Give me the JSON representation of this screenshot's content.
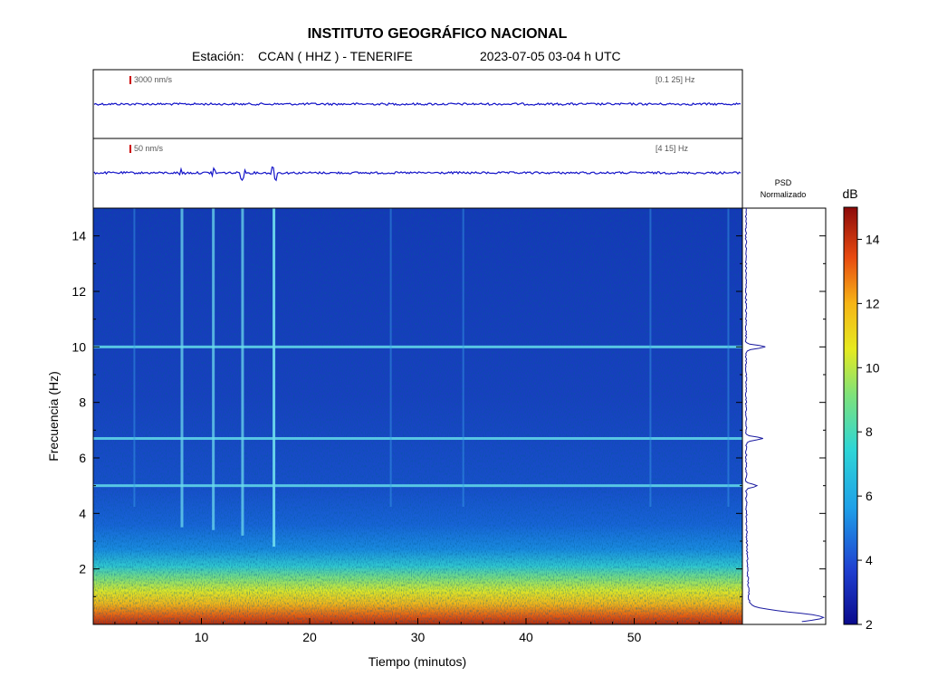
{
  "header": {
    "title": "INSTITUTO GEOGRÁFICO NACIONAL",
    "station_prefix": "Estación:",
    "station": "CCAN ( HHZ ) - TENERIFE",
    "datetime": "2023-07-05  03-04 h UTC"
  },
  "traces": [
    {
      "scale": "3000 nm/s",
      "band": "[0.1 25] Hz"
    },
    {
      "scale": "50 nm/s",
      "band": "[4 15] Hz"
    }
  ],
  "psd": {
    "label_line1": "PSD",
    "label_line2": "Normalizado"
  },
  "colorbar": {
    "unit": "dB",
    "ticks": [
      "2",
      "4",
      "6",
      "8",
      "10",
      "12",
      "14"
    ],
    "min": 2,
    "max": 15
  },
  "colors": {
    "trace": "#1414c8",
    "psd": "#1a1aa0",
    "accent_scale": "#cc0000"
  },
  "chart_data": {
    "type": "heatmap",
    "title": "INSTITUTO GEOGRÁFICO NACIONAL",
    "xlabel": "Tiempo (minutos)",
    "ylabel": "Frecuencia (Hz)",
    "xlim": [
      0,
      60
    ],
    "ylim": [
      0,
      15
    ],
    "xticks": [
      "10",
      "20",
      "30",
      "40",
      "50"
    ],
    "yticks": [
      "2",
      "4",
      "6",
      "8",
      "10",
      "12",
      "14"
    ],
    "colorbar_unit": "dB",
    "colorbar_range": [
      2,
      15
    ],
    "harmonic_lines_hz": [
      10.0,
      6.7,
      5.0
    ],
    "event_times_min": [
      8.2,
      11.1,
      13.8,
      16.7
    ],
    "psd_peaks_hz": [
      0.3,
      5.0,
      6.7,
      10.0
    ]
  }
}
